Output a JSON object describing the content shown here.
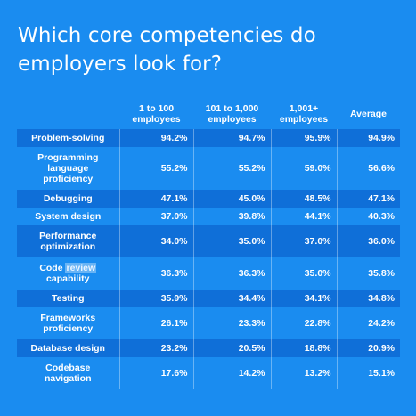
{
  "title": "Which core competencies do employers look for?",
  "chart_data": {
    "type": "table",
    "title": "Which core competencies do employers look for?",
    "columns": [
      "",
      "1 to 100 employees",
      "101 to 1,000 employees",
      "1,001+ employees",
      "Average"
    ],
    "rows": [
      {
        "label": "Problem-solving",
        "values": [
          "94.2%",
          "94.7%",
          "95.9%",
          "94.9%"
        ]
      },
      {
        "label": "Programming language proficiency",
        "values": [
          "55.2%",
          "55.2%",
          "59.0%",
          "56.6%"
        ]
      },
      {
        "label": "Debugging",
        "values": [
          "47.1%",
          "45.0%",
          "48.5%",
          "47.1%"
        ]
      },
      {
        "label": "System design",
        "values": [
          "37.0%",
          "39.8%",
          "44.1%",
          "40.3%"
        ]
      },
      {
        "label": "Performance optimization",
        "values": [
          "34.0%",
          "35.0%",
          "37.0%",
          "36.0%"
        ]
      },
      {
        "label": "Code review capability",
        "values": [
          "36.3%",
          "36.3%",
          "35.0%",
          "35.8%"
        ]
      },
      {
        "label": "Testing",
        "values": [
          "35.9%",
          "34.4%",
          "34.1%",
          "34.8%"
        ]
      },
      {
        "label": "Frameworks proficiency",
        "values": [
          "26.1%",
          "23.3%",
          "22.8%",
          "24.2%"
        ]
      },
      {
        "label": "Database design",
        "values": [
          "23.2%",
          "20.5%",
          "18.8%",
          "20.9%"
        ]
      },
      {
        "label": "Codebase navigation",
        "values": [
          "17.6%",
          "14.2%",
          "13.2%",
          "15.1%"
        ]
      }
    ]
  },
  "header": {
    "c1_line1": "1 to 100",
    "c1_line2": "employees",
    "c2_line1": "101 to 1,000",
    "c2_line2": "employees",
    "c3_line1": "1,001+",
    "c3_line2": "employees",
    "c4": "Average"
  },
  "row_labels": {
    "r0": [
      "Problem-solving"
    ],
    "r1": [
      "Programming",
      "language",
      "proficiency"
    ],
    "r2": [
      "Debugging"
    ],
    "r3": [
      "System design"
    ],
    "r4": [
      "Performance",
      "optimization"
    ],
    "r5": [
      "Code ",
      "review",
      "capability"
    ],
    "r6": [
      "Testing"
    ],
    "r7": [
      "Frameworks",
      "proficiency"
    ],
    "r8": [
      "Database design"
    ],
    "r9": [
      "Codebase",
      "navigation"
    ]
  }
}
